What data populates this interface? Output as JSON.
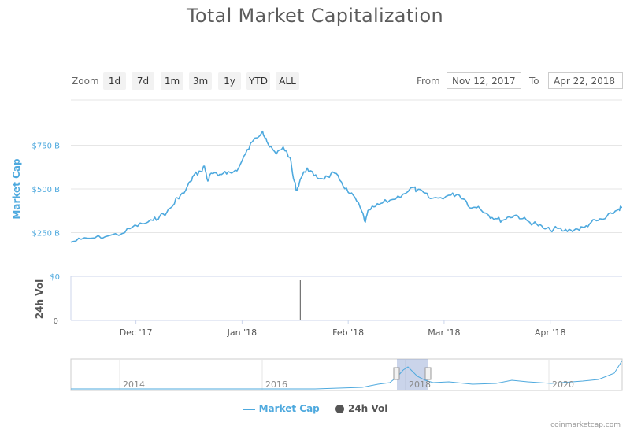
{
  "title": "Total Market Capitalization",
  "range_selector": {
    "zoom_label": "Zoom",
    "buttons": [
      "1d",
      "7d",
      "1m",
      "3m",
      "1y",
      "YTD",
      "ALL"
    ],
    "from_label": "From",
    "from_value": "Nov 12, 2017",
    "to_label": "To",
    "to_value": "Apr 22, 2018"
  },
  "legend": {
    "market_cap": "Market Cap",
    "volume": "24h Vol"
  },
  "credit": "coinmarketcap.com",
  "colors": {
    "market_cap": "#4ea9de",
    "volume": "#555555",
    "axis_text": "#4ea9de",
    "grid": "#e6e6e6"
  },
  "chart_data": {
    "type": "line",
    "title": "Total Market Capitalization",
    "series": [
      {
        "name": "Market Cap",
        "unit": "B USD",
        "points": [
          [
            "2017-11-12",
            195
          ],
          [
            "2017-11-15",
            212
          ],
          [
            "2017-11-19",
            220
          ],
          [
            "2017-11-23",
            232
          ],
          [
            "2017-11-27",
            245
          ],
          [
            "2017-11-30",
            282
          ],
          [
            "2017-12-03",
            300
          ],
          [
            "2017-12-06",
            320
          ],
          [
            "2017-12-08",
            345
          ],
          [
            "2017-12-10",
            365
          ],
          [
            "2017-12-12",
            410
          ],
          [
            "2017-12-13",
            450
          ],
          [
            "2017-12-15",
            475
          ],
          [
            "2017-12-17",
            545
          ],
          [
            "2017-12-18",
            580
          ],
          [
            "2017-12-20",
            600
          ],
          [
            "2017-12-21",
            630
          ],
          [
            "2017-12-22",
            545
          ],
          [
            "2017-12-23",
            590
          ],
          [
            "2017-12-25",
            575
          ],
          [
            "2017-12-27",
            600
          ],
          [
            "2017-12-29",
            590
          ],
          [
            "2017-12-31",
            620
          ],
          [
            "2018-01-02",
            700
          ],
          [
            "2018-01-04",
            770
          ],
          [
            "2018-01-07",
            830
          ],
          [
            "2018-01-08",
            790
          ],
          [
            "2018-01-09",
            740
          ],
          [
            "2018-01-11",
            700
          ],
          [
            "2018-01-13",
            740
          ],
          [
            "2018-01-15",
            680
          ],
          [
            "2018-01-16",
            560
          ],
          [
            "2018-01-17",
            490
          ],
          [
            "2018-01-18",
            555
          ],
          [
            "2018-01-20",
            620
          ],
          [
            "2018-01-22",
            575
          ],
          [
            "2018-01-24",
            560
          ],
          [
            "2018-01-26",
            570
          ],
          [
            "2018-01-28",
            590
          ],
          [
            "2018-01-30",
            540
          ],
          [
            "2018-02-01",
            480
          ],
          [
            "2018-02-03",
            450
          ],
          [
            "2018-02-05",
            370
          ],
          [
            "2018-02-06",
            310
          ],
          [
            "2018-02-07",
            380
          ],
          [
            "2018-02-09",
            400
          ],
          [
            "2018-02-11",
            420
          ],
          [
            "2018-02-14",
            440
          ],
          [
            "2018-02-17",
            470
          ],
          [
            "2018-02-20",
            510
          ],
          [
            "2018-02-21",
            490
          ],
          [
            "2018-02-23",
            480
          ],
          [
            "2018-02-25",
            445
          ],
          [
            "2018-02-28",
            450
          ],
          [
            "2018-03-03",
            465
          ],
          [
            "2018-03-05",
            470
          ],
          [
            "2018-03-07",
            440
          ],
          [
            "2018-03-09",
            390
          ],
          [
            "2018-03-11",
            400
          ],
          [
            "2018-03-14",
            350
          ],
          [
            "2018-03-16",
            330
          ],
          [
            "2018-03-18",
            320
          ],
          [
            "2018-03-20",
            340
          ],
          [
            "2018-03-22",
            350
          ],
          [
            "2018-03-24",
            330
          ],
          [
            "2018-03-26",
            310
          ],
          [
            "2018-03-28",
            300
          ],
          [
            "2018-03-30",
            275
          ],
          [
            "2018-04-01",
            265
          ],
          [
            "2018-04-03",
            275
          ],
          [
            "2018-04-05",
            260
          ],
          [
            "2018-04-07",
            265
          ],
          [
            "2018-04-09",
            270
          ],
          [
            "2018-04-11",
            280
          ],
          [
            "2018-04-13",
            310
          ],
          [
            "2018-04-15",
            320
          ],
          [
            "2018-04-17",
            330
          ],
          [
            "2018-04-19",
            360
          ],
          [
            "2018-04-21",
            385
          ],
          [
            "2018-04-22",
            395
          ]
        ]
      },
      {
        "name": "24h Vol",
        "note": "single spike visible around 2018-01-18",
        "points": [
          [
            "2018-01-18",
            1
          ]
        ]
      }
    ],
    "xlabel": "",
    "ylabel": "Market Cap",
    "ylabel_volume": "24h Vol",
    "x_ticks": [
      [
        "2017-12-01",
        "Dec '17"
      ],
      [
        "2018-01-01",
        "Jan '18"
      ],
      [
        "2018-02-01",
        "Feb '18"
      ],
      [
        "2018-03-01",
        "Mar '18"
      ],
      [
        "2018-04-01",
        "Apr '18"
      ]
    ],
    "y_ticks": [
      [
        0,
        "$0"
      ],
      [
        250,
        "$250 B"
      ],
      [
        500,
        "$500 B"
      ],
      [
        750,
        "$750 B"
      ]
    ],
    "volume_ticks": [
      "0"
    ],
    "xlim": [
      "2017-11-12",
      "2018-04-22"
    ],
    "ylim": [
      0,
      1000
    ],
    "navigator": {
      "tick_labels": [
        "2014",
        "2016",
        "2018",
        "2020"
      ],
      "selected_range": [
        "2017-11-12",
        "2018-04-22"
      ]
    },
    "grid": true,
    "legend_position": "bottom"
  }
}
